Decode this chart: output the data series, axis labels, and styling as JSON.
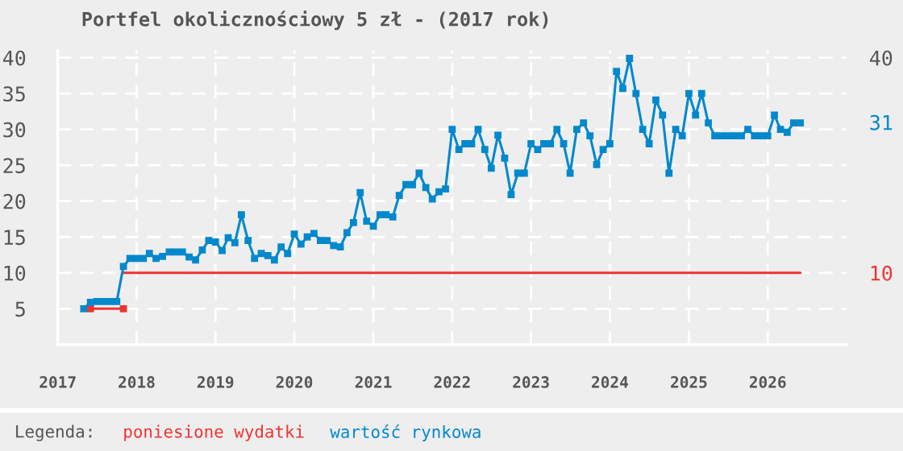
{
  "chart_data": {
    "type": "line",
    "title": "Portfel okolicznościowy 5 zł - (2017 rok)",
    "legend_title": "Legenda:",
    "legend": "bottom",
    "grid": true,
    "marker": "square",
    "xlim": [
      "2017-01",
      "2027-01"
    ],
    "xticks": [
      "2017",
      "2018",
      "2019",
      "2020",
      "2021",
      "2022",
      "2023",
      "2024",
      "2025",
      "2026"
    ],
    "ylim": [
      0,
      41
    ],
    "yticks": [
      5,
      10,
      15,
      20,
      25,
      30,
      35,
      40
    ],
    "y2lim": [
      0,
      41
    ],
    "y2ticks": [
      10,
      31,
      40
    ],
    "series": [
      {
        "name": "poniesione wydatki",
        "color": "#ee3333",
        "x": [
          "2017-06",
          "2017-11"
        ],
        "values": [
          5,
          5
        ]
      },
      {
        "color": "#ee3333",
        "marker": "none",
        "x": [
          "2017-11",
          "2026-06"
        ],
        "values": [
          10,
          10
        ]
      },
      {
        "name": "wartość rynkowa",
        "color": "#0088cc",
        "x": [
          "2017-05",
          "2017-06",
          "2017-07",
          "2017-08",
          "2017-09",
          "2017-10",
          "2017-11",
          "2017-12",
          "2018-01",
          "2018-02",
          "2018-03",
          "2018-04",
          "2018-05",
          "2018-06",
          "2018-07",
          "2018-08",
          "2018-09",
          "2018-10",
          "2018-11",
          "2018-12",
          "2019-01",
          "2019-02",
          "2019-03",
          "2019-04",
          "2019-05",
          "2019-06",
          "2019-07",
          "2019-08",
          "2019-09",
          "2019-10",
          "2019-11",
          "2019-12",
          "2020-01",
          "2020-02",
          "2020-03",
          "2020-04",
          "2020-05",
          "2020-06",
          "2020-07",
          "2020-08",
          "2020-09",
          "2020-10",
          "2020-11",
          "2020-12",
          "2021-01",
          "2021-02",
          "2021-03",
          "2021-04",
          "2021-05",
          "2021-06",
          "2021-07",
          "2021-08",
          "2021-09",
          "2021-10",
          "2021-11",
          "2021-12",
          "2022-01",
          "2022-02",
          "2022-03",
          "2022-04",
          "2022-05",
          "2022-06",
          "2022-07",
          "2022-08",
          "2022-09",
          "2022-10",
          "2022-11",
          "2022-12",
          "2023-01",
          "2023-02",
          "2023-03",
          "2023-04",
          "2023-05",
          "2023-06",
          "2023-07",
          "2023-08",
          "2023-09",
          "2023-10",
          "2023-11",
          "2023-12",
          "2024-01",
          "2024-02",
          "2024-03",
          "2024-04",
          "2024-05",
          "2024-06",
          "2024-07",
          "2024-08",
          "2024-09",
          "2024-10",
          "2024-11",
          "2024-12",
          "2025-01",
          "2025-02",
          "2025-03",
          "2025-04",
          "2025-05",
          "2025-06",
          "2025-07",
          "2025-08",
          "2025-09",
          "2025-10",
          "2025-11",
          "2025-12",
          "2026-01",
          "2026-02",
          "2026-03",
          "2026-04",
          "2026-05",
          "2026-06"
        ],
        "values": [
          5.0,
          5.9,
          6,
          6,
          6,
          6,
          10.9,
          12,
          12,
          12,
          12.7,
          12,
          12.3,
          12.9,
          12.9,
          12.9,
          12.2,
          11.8,
          13.2,
          14.5,
          14.3,
          13.1,
          14.9,
          14.2,
          18.1,
          14.5,
          12,
          12.7,
          12.4,
          11.8,
          13.6,
          12.7,
          15.4,
          14,
          15,
          15.5,
          14.5,
          14.5,
          13.8,
          13.6,
          15.6,
          17,
          21.2,
          17.2,
          16.5,
          18.1,
          18.1,
          17.8,
          20.8,
          22.3,
          22.3,
          23.9,
          21.9,
          20.3,
          21.3,
          21.7,
          30,
          27.2,
          28,
          28,
          30,
          27.2,
          24.6,
          29.2,
          26,
          20.9,
          23.9,
          23.9,
          28,
          27.2,
          28,
          28,
          30,
          28,
          23.9,
          30,
          30.9,
          29.1,
          25.1,
          27.2,
          28,
          38.1,
          35.7,
          39.9,
          35,
          30,
          28,
          34.1,
          32,
          23.9,
          30,
          29.1,
          35,
          32,
          35,
          30.9,
          29.1,
          29.1,
          29.1,
          29.1,
          29.1,
          30,
          29.1,
          29.1,
          29.1,
          32,
          30,
          29.6,
          30.9,
          30.9
        ]
      }
    ]
  }
}
